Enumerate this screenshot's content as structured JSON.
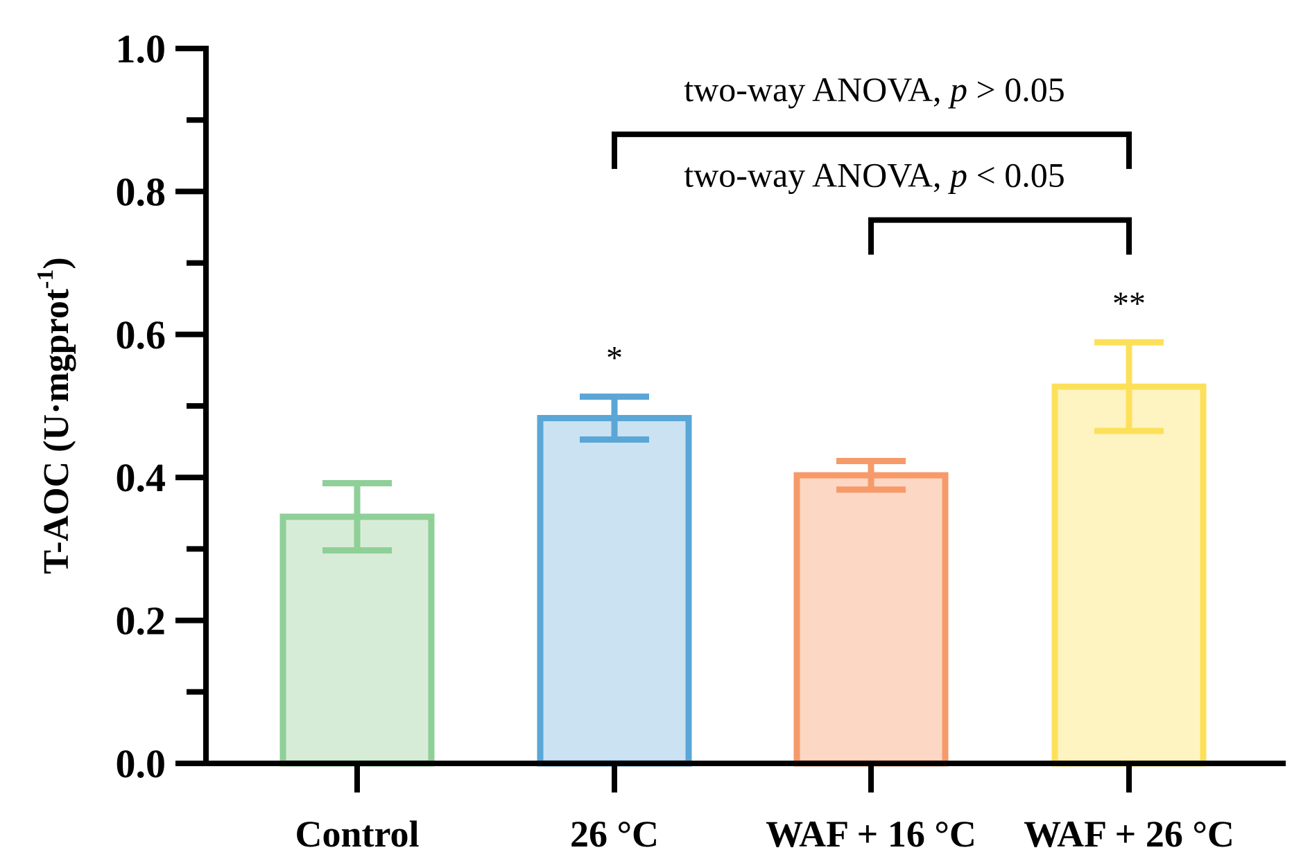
{
  "chart_data": {
    "type": "bar",
    "ylabel_main": "T-AOC (U·mgprot",
    "ylabel_sup": "-1",
    "ylabel_close": ")",
    "ylim": [
      0,
      1.0
    ],
    "yticks": [
      "0.0",
      "0.2",
      "0.4",
      "0.6",
      "0.8",
      "1.0"
    ],
    "categories": [
      "Control",
      "26 °C",
      "WAF + 16 °C",
      "WAF + 26 °C"
    ],
    "values": [
      0.345,
      0.483,
      0.403,
      0.527
    ],
    "errors": [
      0.047,
      0.03,
      0.02,
      0.062
    ],
    "significance": [
      "",
      "*",
      "",
      "**"
    ],
    "colors": {
      "stroke": [
        "#8fcf98",
        "#5aa6d6",
        "#f69a6a",
        "#fde05a"
      ],
      "fill": [
        "#d7ecd6",
        "#cbe2f2",
        "#fcd8c4",
        "#fef4c2"
      ]
    },
    "comparisons": [
      {
        "from": 1,
        "to": 3,
        "level": 0.88,
        "text_prefix": "two-way ANOVA, ",
        "text_italic": "p",
        "text_suffix": " > 0.05"
      },
      {
        "from": 2,
        "to": 3,
        "level": 0.76,
        "text_prefix": "two-way ANOVA, ",
        "text_italic": "p",
        "text_suffix": " < 0.05"
      }
    ]
  }
}
